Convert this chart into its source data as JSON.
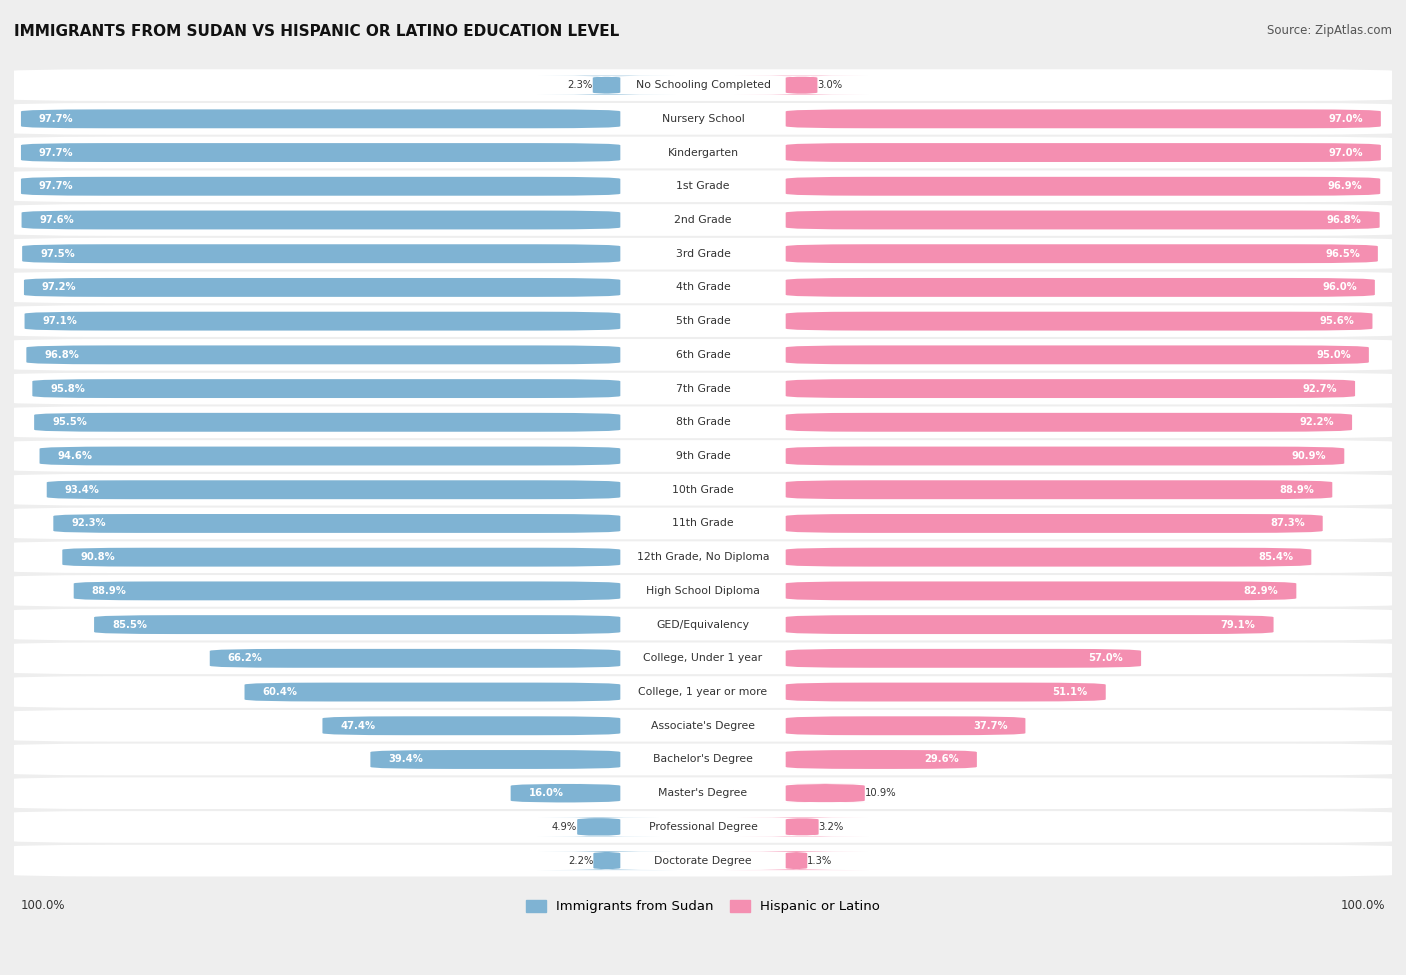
{
  "title": "IMMIGRANTS FROM SUDAN VS HISPANIC OR LATINO EDUCATION LEVEL",
  "source": "Source: ZipAtlas.com",
  "categories": [
    "No Schooling Completed",
    "Nursery School",
    "Kindergarten",
    "1st Grade",
    "2nd Grade",
    "3rd Grade",
    "4th Grade",
    "5th Grade",
    "6th Grade",
    "7th Grade",
    "8th Grade",
    "9th Grade",
    "10th Grade",
    "11th Grade",
    "12th Grade, No Diploma",
    "High School Diploma",
    "GED/Equivalency",
    "College, Under 1 year",
    "College, 1 year or more",
    "Associate's Degree",
    "Bachelor's Degree",
    "Master's Degree",
    "Professional Degree",
    "Doctorate Degree"
  ],
  "sudan_values": [
    2.3,
    97.7,
    97.7,
    97.7,
    97.6,
    97.5,
    97.2,
    97.1,
    96.8,
    95.8,
    95.5,
    94.6,
    93.4,
    92.3,
    90.8,
    88.9,
    85.5,
    66.2,
    60.4,
    47.4,
    39.4,
    16.0,
    4.9,
    2.2
  ],
  "hispanic_values": [
    3.0,
    97.0,
    97.0,
    96.9,
    96.8,
    96.5,
    96.0,
    95.6,
    95.0,
    92.7,
    92.2,
    90.9,
    88.9,
    87.3,
    85.4,
    82.9,
    79.1,
    57.0,
    51.1,
    37.7,
    29.6,
    10.9,
    3.2,
    1.3
  ],
  "sudan_color": "#7fb3d3",
  "hispanic_color": "#f48fb1",
  "background_color": "#eeeeee",
  "bar_background": "#ffffff",
  "label_sudan": "Immigrants from Sudan",
  "label_hispanic": "Hispanic or Latino",
  "text_color_dark": "#333333",
  "text_color_white": "#ffffff"
}
